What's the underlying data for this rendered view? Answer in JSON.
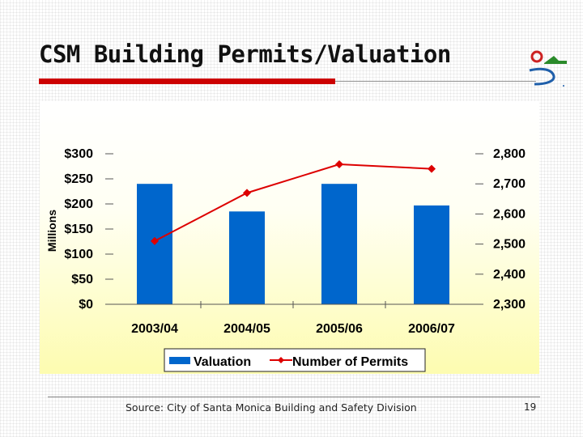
{
  "slide": {
    "title": "CSM Building Permits/Valuation",
    "source": "Source: City of Santa Monica Building and Safety Division",
    "page_number": "19"
  },
  "colors": {
    "bar": "#0066cc",
    "line": "#dd0000",
    "title_rule": "#cc0000",
    "logo_red": "#cc2222",
    "logo_green": "#2a8a2a",
    "logo_blue": "#1f5faa"
  },
  "chart_data": {
    "type": "bar+line",
    "title": "",
    "categories": [
      "2003/04",
      "2004/05",
      "2005/06",
      "2006/07"
    ],
    "y_left": {
      "label": "Millions",
      "range": [
        0,
        300
      ],
      "ticks": [
        "$0",
        "$50",
        "$100",
        "$150",
        "$200",
        "$250",
        "$300"
      ],
      "tick_values": [
        0,
        50,
        100,
        150,
        200,
        250,
        300
      ]
    },
    "y_right": {
      "label": "",
      "range": [
        2300,
        2800
      ],
      "ticks": [
        "2,300",
        "2,400",
        "2,500",
        "2,600",
        "2,700",
        "2,800"
      ],
      "tick_values": [
        2300,
        2400,
        2500,
        2600,
        2700,
        2800
      ]
    },
    "series": [
      {
        "name": "Valuation",
        "type": "bar",
        "axis": "left",
        "values": [
          240,
          185,
          240,
          197
        ]
      },
      {
        "name": "Number of Permits",
        "type": "line",
        "axis": "right",
        "values": [
          2510,
          2670,
          2765,
          2750
        ]
      }
    ],
    "legend_position": "bottom",
    "grid": false
  }
}
